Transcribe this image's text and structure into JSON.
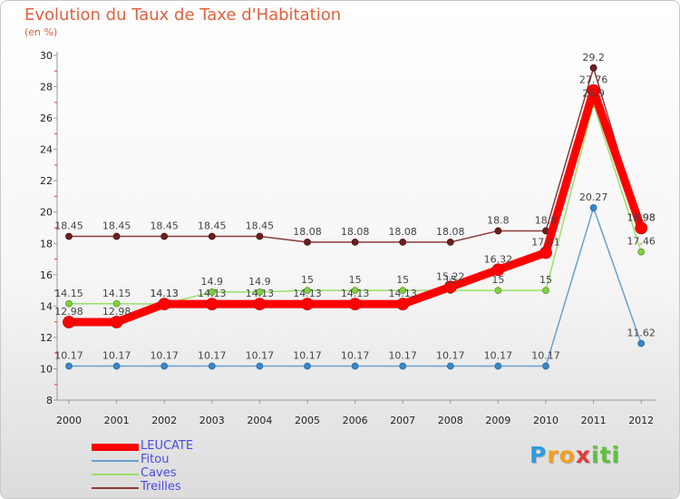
{
  "chart_data": {
    "type": "line",
    "title": "Evolution du Taux de Taxe d'Habitation",
    "unit_label": "(en %)",
    "categories": [
      "2000",
      "2001",
      "2002",
      "2003",
      "2004",
      "2005",
      "2006",
      "2007",
      "2008",
      "2009",
      "2010",
      "2011",
      "2012"
    ],
    "ylim": [
      8,
      30
    ],
    "yticks": [
      "8",
      "10",
      "12",
      "14",
      "16",
      "18",
      "20",
      "22",
      "24",
      "26",
      "28",
      "30"
    ],
    "grid": false,
    "legend_position": "bottom-left",
    "series": [
      {
        "name": "LEUCATE",
        "color": "#ff0000",
        "values": [
          12.98,
          12.98,
          14.13,
          14.13,
          14.13,
          14.13,
          14.13,
          14.13,
          15.22,
          16.32,
          17.41,
          27.76,
          18.98
        ]
      },
      {
        "name": "Fitou",
        "color": "#6aa0d0",
        "values": [
          10.17,
          10.17,
          10.17,
          10.17,
          10.17,
          10.17,
          10.17,
          10.17,
          10.17,
          10.17,
          10.17,
          20.27,
          11.62
        ]
      },
      {
        "name": "Caves",
        "color": "#99e066",
        "values": [
          14.15,
          14.15,
          14.13,
          14.9,
          14.9,
          15,
          15,
          15,
          15,
          15,
          15,
          26.9,
          17.46
        ]
      },
      {
        "name": "Treilles",
        "color": "#8a3a3a",
        "values": [
          18.45,
          18.45,
          18.45,
          18.45,
          18.45,
          18.08,
          18.08,
          18.08,
          18.08,
          18.8,
          18.8,
          29.2,
          18.98
        ]
      }
    ],
    "data_labels": [
      {
        "series": "Treilles",
        "labels": [
          "18.45",
          "18.45",
          "18.45",
          "18.45",
          "18.45",
          "18.08",
          "18.08",
          "18.08",
          "18.08",
          "18.8",
          "18.8",
          "29.2",
          "18.98"
        ]
      },
      {
        "series": "LEUCATE",
        "labels": [
          "12.98",
          "12.98",
          "14.13",
          "14.13",
          "14.13",
          "14.13",
          "14.13",
          "14.13",
          "15.22",
          "16.32",
          "17.41",
          "27.76",
          "18.98"
        ]
      },
      {
        "series": "Caves",
        "labels": [
          "14.15",
          "14.15",
          "14.13",
          "14.9",
          "14.9",
          "15",
          "15",
          "15",
          "15",
          "15",
          "15",
          "26.9",
          "17.46"
        ]
      },
      {
        "series": "Fitou",
        "labels": [
          "10.17",
          "10.17",
          "10.17",
          "10.17",
          "10.17",
          "10.17",
          "10.17",
          "10.17",
          "10.17",
          "10.17",
          "10.17",
          "20.27",
          "11.62"
        ]
      }
    ]
  },
  "logo": {
    "letters": [
      "P",
      "r",
      "o",
      "x",
      "i",
      "t",
      "i"
    ],
    "colors": [
      "#2f9be0",
      "#f2a020",
      "#f2a020",
      "#e03a3a",
      "#5fc040",
      "#5fc040",
      "#5fc040"
    ]
  }
}
